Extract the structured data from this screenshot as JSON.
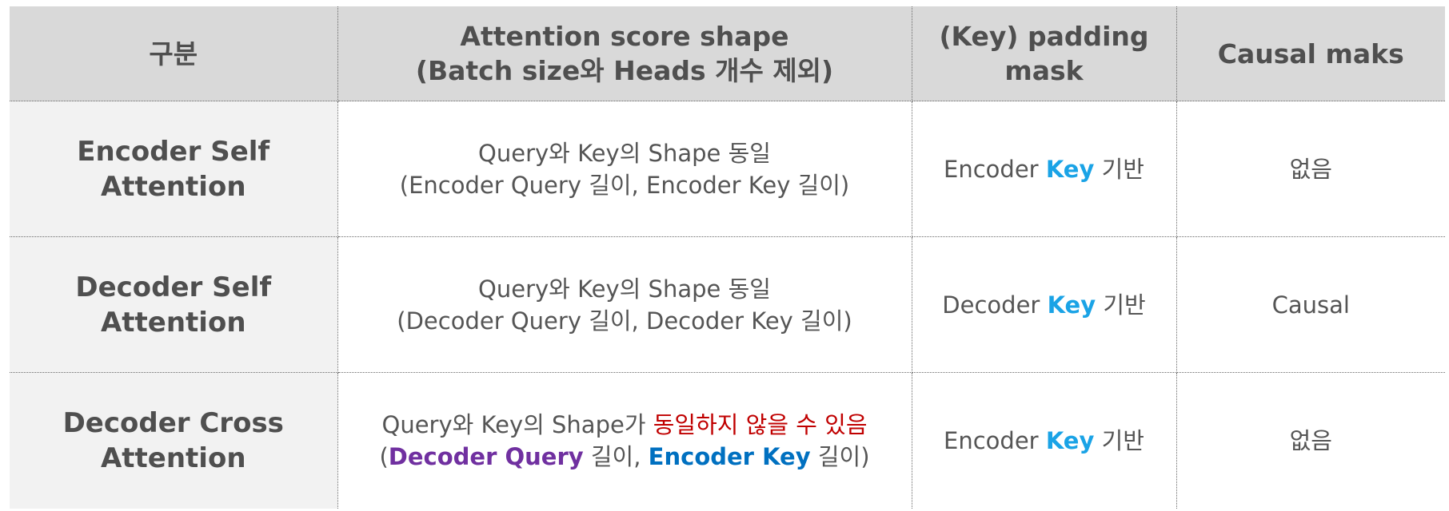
{
  "header": {
    "col1": "구분",
    "col2_line1": "Attention score shape",
    "col2_line2": "(Batch size와 Heads 개수 제외)",
    "col3_line1": "(Key) padding",
    "col3_line2": "mask",
    "col4": "Causal maks"
  },
  "rows": [
    {
      "label_line1": "Encoder Self",
      "label_line2": "Attention",
      "shape_line1": "Query와 Key의 Shape 동일",
      "shape_line2": "(Encoder Query 길이, Encoder Key 길이)",
      "mask_prefix": "Encoder ",
      "mask_key": "Key",
      "mask_suffix": " 기반",
      "causal": "없음"
    },
    {
      "label_line1": "Decoder Self",
      "label_line2": "Attention",
      "shape_line1": "Query와 Key의 Shape 동일",
      "shape_line2": "(Decoder Query 길이, Decoder Key 길이)",
      "mask_prefix": "Decoder ",
      "mask_key": "Key",
      "mask_suffix": " 기반",
      "causal": "Causal"
    },
    {
      "label_line1": "Decoder Cross",
      "label_line2": "Attention",
      "shape_line1_a": "Query와 Key의 Shape가 ",
      "shape_line1_b": "동일하지 않을 수 있음",
      "shape_line2_open": "(",
      "shape_line2_q": "Decoder Query",
      "shape_line2_mid": " 길이, ",
      "shape_line2_k": "Encoder Key",
      "shape_line2_close": " 길이)",
      "mask_prefix": "Encoder ",
      "mask_key": "Key",
      "mask_suffix": " 기반",
      "causal": "없음"
    }
  ],
  "colors": {
    "header_bg": "#d9d9d9",
    "rowhead_bg": "#f2f2f2",
    "key_highlight": "#1aa3e6",
    "warning_red": "#c00000",
    "decoder_query_purple": "#7030a0",
    "encoder_key_blue": "#0070c0"
  }
}
